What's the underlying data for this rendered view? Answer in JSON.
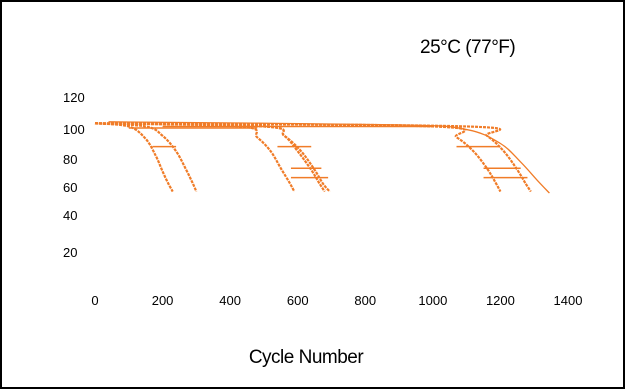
{
  "chart_data": {
    "type": "line",
    "title": "25°C (77°F)",
    "xlabel": "Cycle Number",
    "ylabel": "",
    "xlim": [
      0,
      1400
    ],
    "ylim": [
      20,
      120
    ],
    "grid": false,
    "legend": "none",
    "x_ticks": [
      "0",
      "200",
      "400",
      "600",
      "800",
      "1000",
      "1200",
      "1400"
    ],
    "y_ticks": [
      "120",
      "100",
      "80",
      "60",
      "40",
      "20"
    ],
    "line_color": "#f07c28",
    "series": [
      {
        "x": [
          0,
          100,
          150,
          180,
          200,
          215,
          230
        ],
        "y": [
          103,
          101,
          93,
          82,
          72,
          65,
          59
        ]
      },
      {
        "x": [
          0,
          150,
          200,
          240,
          270,
          290,
          300
        ],
        "y": [
          103,
          101,
          95,
          85,
          73,
          64,
          59
        ]
      },
      {
        "x": [
          0,
          430,
          480,
          520,
          550,
          575,
          590
        ],
        "y": [
          103,
          101,
          94,
          85,
          74,
          65,
          59
        ]
      },
      {
        "x": [
          0,
          500,
          560,
          600,
          640,
          665,
          680
        ],
        "y": [
          103,
          101,
          95,
          85,
          73,
          64,
          59
        ]
      },
      {
        "x": [
          0,
          500,
          560,
          610,
          650,
          675,
          695
        ],
        "y": [
          103,
          101,
          95,
          85,
          73,
          64,
          59
        ]
      },
      {
        "x": [
          0,
          1000,
          1070,
          1120,
          1160,
          1185,
          1200
        ],
        "y": [
          103,
          101,
          94,
          85,
          74,
          65,
          59
        ]
      },
      {
        "x": [
          0,
          1100,
          1160,
          1210,
          1250,
          1275,
          1290
        ],
        "y": [
          103,
          101,
          95,
          85,
          73,
          64,
          59
        ]
      },
      {
        "x": [
          40,
          900,
          1100,
          1200,
          1260,
          1310,
          1345
        ],
        "y": [
          104,
          102,
          99,
          90,
          78,
          66,
          58
        ]
      }
    ],
    "reference_lines": [
      {
        "x": [
          170,
          240
        ],
        "y": [
          88,
          88
        ]
      },
      {
        "x": [
          540,
          640
        ],
        "y": [
          88,
          88
        ]
      },
      {
        "x": [
          1070,
          1200
        ],
        "y": [
          88,
          88
        ]
      },
      {
        "x": [
          580,
          670
        ],
        "y": [
          74,
          74
        ]
      },
      {
        "x": [
          580,
          690
        ],
        "y": [
          68,
          68
        ]
      },
      {
        "x": [
          1150,
          1260
        ],
        "y": [
          74,
          74
        ]
      },
      {
        "x": [
          1150,
          1280
        ],
        "y": [
          68,
          68
        ]
      },
      {
        "x": [
          100,
          480
        ],
        "y": [
          100,
          100
        ]
      },
      {
        "x": [
          200,
          1000
        ],
        "y": [
          101,
          101
        ]
      }
    ]
  }
}
